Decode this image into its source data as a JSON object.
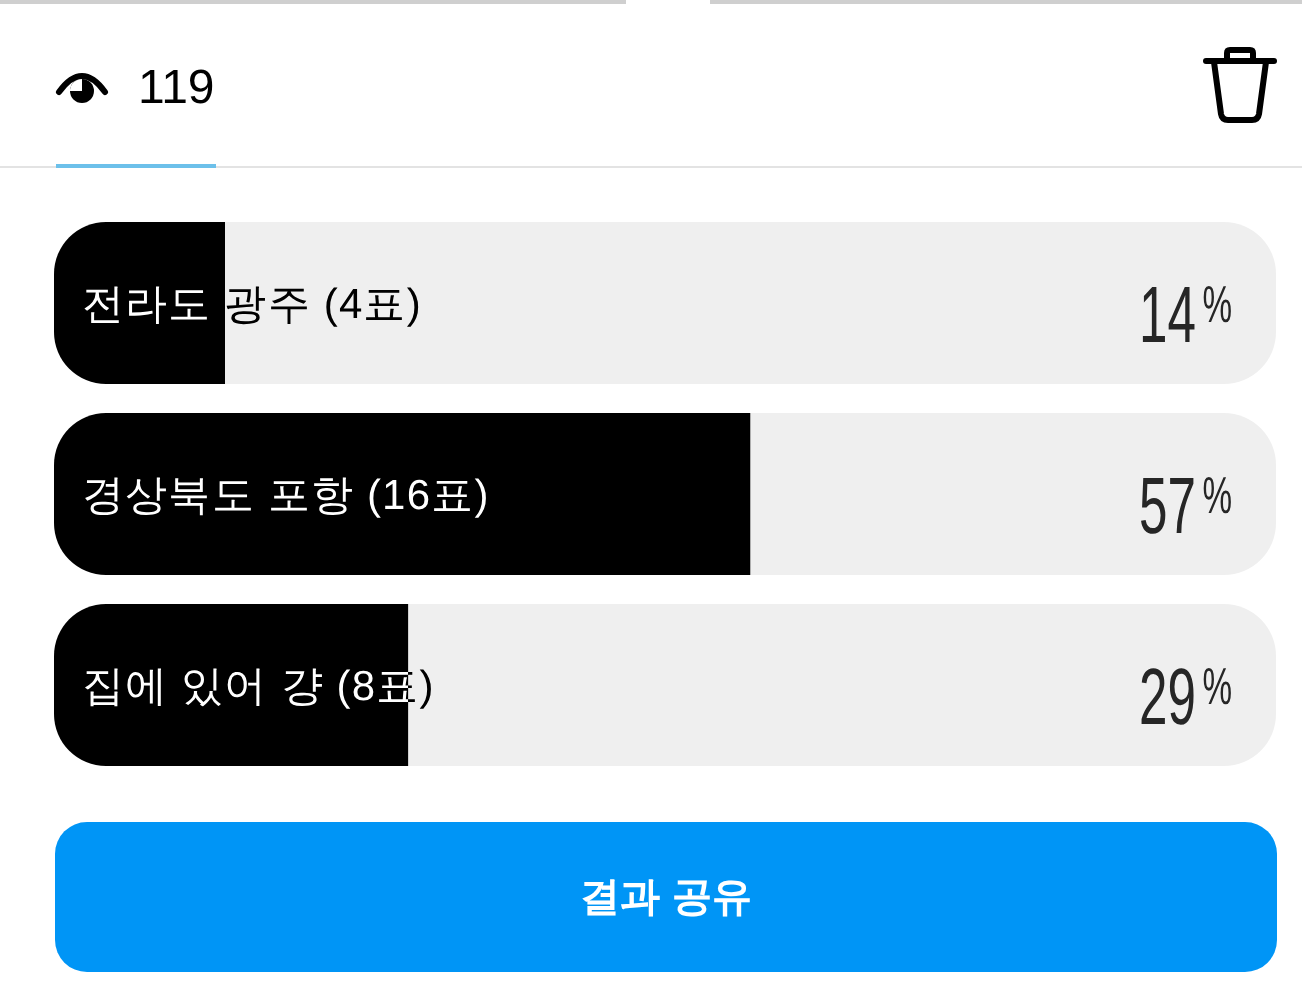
{
  "chart_data": {
    "type": "bar",
    "orientation": "horizontal",
    "categories": [
      "전라도 광주 (4표)",
      "경상북도 포항 (16표)",
      "집에 있어 걍 (8표)"
    ],
    "values": [
      14,
      57,
      29
    ],
    "color": "#000000",
    "xlim": [
      0,
      100
    ],
    "value_labels": [
      "14%",
      "57%",
      "29%"
    ],
    "annotations": [
      "119",
      "결과 공유"
    ]
  }
}
